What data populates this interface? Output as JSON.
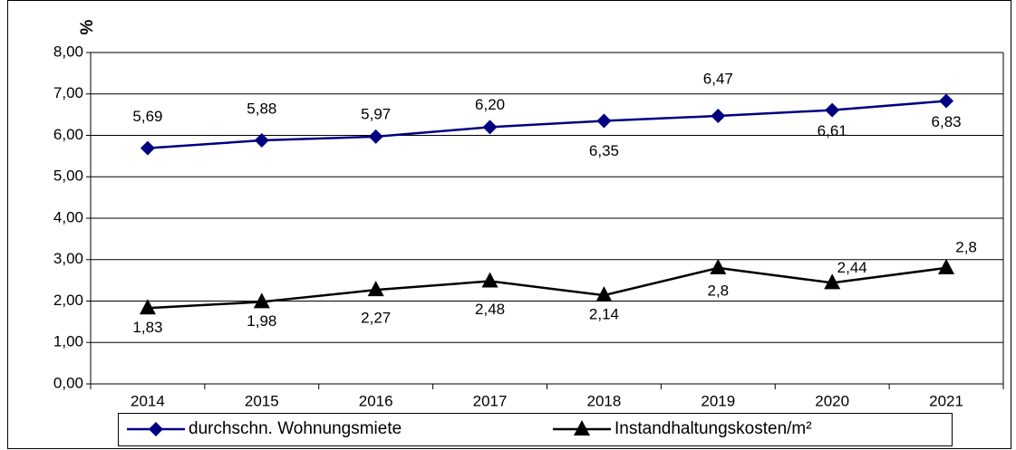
{
  "chart_data": {
    "type": "line",
    "y_label": "%",
    "categories": [
      "2014",
      "2015",
      "2016",
      "2017",
      "2018",
      "2019",
      "2020",
      "2021"
    ],
    "series": [
      {
        "name": "durchschn. Wohnungsmiete",
        "color": "#000080",
        "marker": "diamond",
        "values": [
          5.69,
          5.88,
          5.97,
          6.2,
          6.35,
          6.47,
          6.61,
          6.83
        ],
        "value_labels": [
          "5,69",
          "5,88",
          "5,97",
          "6,20",
          "6,35",
          "6,47",
          "6,61",
          "6,83"
        ]
      },
      {
        "name": "Instandhaltungskosten/m²",
        "color": "#000000",
        "marker": "triangle",
        "values": [
          1.83,
          1.98,
          2.27,
          2.48,
          2.14,
          2.8,
          2.44,
          2.8
        ],
        "value_labels": [
          "1,83",
          "1,98",
          "2,27",
          "2,48",
          "2,14",
          "2,8",
          "2,44",
          "2,8"
        ]
      }
    ],
    "ylim": [
      0,
      8
    ],
    "yticks": [
      {
        "value": 0,
        "label": "0,00"
      },
      {
        "value": 1,
        "label": "1,00"
      },
      {
        "value": 2,
        "label": "2,00"
      },
      {
        "value": 3,
        "label": "3,00"
      },
      {
        "value": 4,
        "label": "4,00"
      },
      {
        "value": 5,
        "label": "5,00"
      },
      {
        "value": 6,
        "label": "6,00"
      },
      {
        "value": 7,
        "label": "7,00"
      },
      {
        "value": 8,
        "label": "8,00"
      }
    ],
    "grid": true,
    "legend": "bottom"
  }
}
